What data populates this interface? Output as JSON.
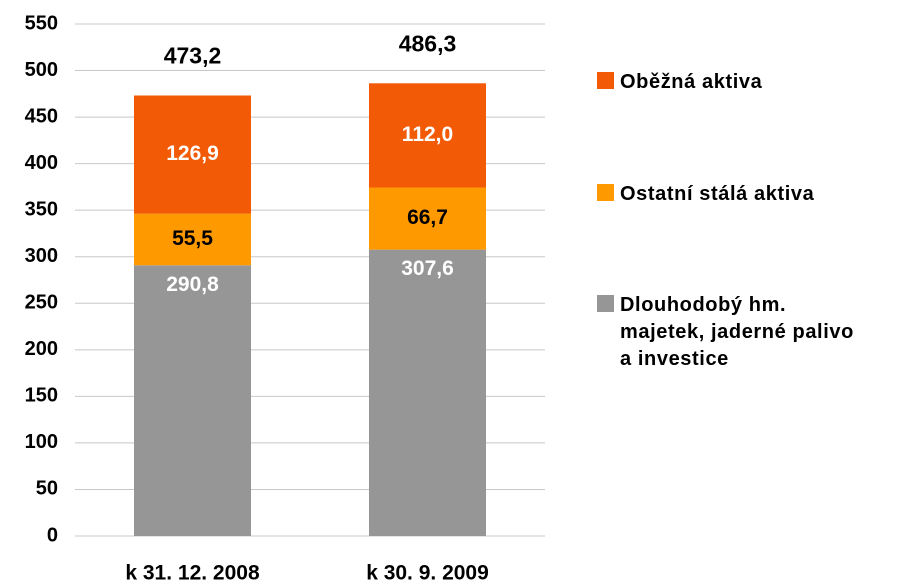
{
  "chart_data": {
    "type": "stacked-bar",
    "categories": [
      "k 31. 12. 2008",
      "k 30. 9. 2009"
    ],
    "series": [
      {
        "name": "Dlouhodobý hm. majetek, jaderné palivo a investice",
        "color": "#969696",
        "values": [
          290.8,
          307.6
        ],
        "value_labels": [
          "290,8",
          "307,6"
        ]
      },
      {
        "name": "Ostatní stálá aktiva",
        "color": "#ff9900",
        "values": [
          55.5,
          66.7
        ],
        "value_labels": [
          "55,5",
          "66,7"
        ]
      },
      {
        "name": "Oběžná aktiva",
        "color": "#f25a05",
        "values": [
          126.9,
          112.0
        ],
        "value_labels": [
          "126,9",
          "112,0"
        ]
      }
    ],
    "totals": {
      "values": [
        473.2,
        486.3
      ],
      "value_labels": [
        "473,2",
        "486,3"
      ]
    },
    "ylim": [
      0,
      550
    ],
    "yticks": [
      0,
      50,
      100,
      150,
      200,
      250,
      300,
      350,
      400,
      450,
      500,
      550
    ],
    "grid": true,
    "legend": "right"
  }
}
